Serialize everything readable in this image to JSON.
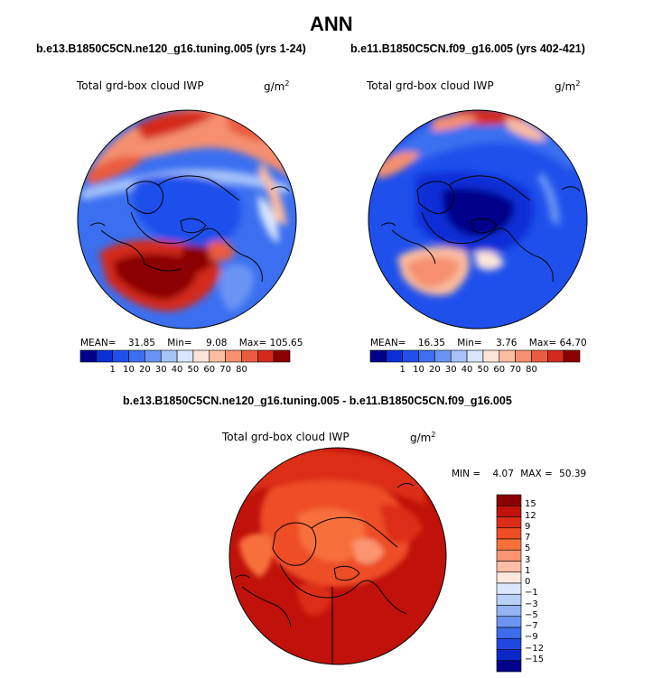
{
  "figure_title": "ANN",
  "chart_data": [
    {
      "type": "polar_contour_map",
      "title": "b.e13.B1850C5CN.ne120_g16.tuning.005 (yrs 1-24)",
      "variable": "Total grd-box cloud IWP",
      "units": "g/m",
      "units_exp": "2",
      "stats": {
        "mean_label": "MEAN=",
        "mean": "31.85",
        "min_label": "Min=",
        "min": "9.08",
        "max_label": "Max=",
        "max": "105.65"
      },
      "colorbar": {
        "levels": [
          "1",
          "10",
          "20",
          "30",
          "40",
          "50",
          "60",
          "70",
          "80"
        ],
        "colors": [
          "#00008b",
          "#0b2fd6",
          "#1f50ec",
          "#3b6ff0",
          "#6a94f4",
          "#a5c2f9",
          "#d8e6fc",
          "#fde4d8",
          "#fbbc9f",
          "#f58f6f",
          "#ea5c3f",
          "#d42a1e",
          "#8b0000"
        ]
      }
    },
    {
      "type": "polar_contour_map",
      "title": "b.e11.B1850C5CN.f09_g16.005 (yrs 402-421)",
      "variable": "Total grd-box cloud IWP",
      "units": "g/m",
      "units_exp": "2",
      "stats": {
        "mean_label": "MEAN=",
        "mean": "16.35",
        "min_label": "Min=",
        "min": "3.76",
        "max_label": "Max=",
        "max": "64.70"
      },
      "colorbar": {
        "levels": [
          "1",
          "10",
          "20",
          "30",
          "40",
          "50",
          "60",
          "70",
          "80"
        ],
        "colors": [
          "#00008b",
          "#0b2fd6",
          "#1f50ec",
          "#3b6ff0",
          "#6a94f4",
          "#a5c2f9",
          "#d8e6fc",
          "#fde4d8",
          "#fbbc9f",
          "#f58f6f",
          "#ea5c3f",
          "#d42a1e",
          "#8b0000"
        ]
      }
    },
    {
      "type": "polar_contour_map",
      "title": "b.e13.B1850C5CN.ne120_g16.tuning.005 - b.e11.B1850C5CN.f09_g16.005",
      "variable": "Total grd-box cloud IWP",
      "units": "g/m",
      "units_exp": "2",
      "stats": {
        "min_label": "MIN =",
        "min": "4.07",
        "max_label": "MAX =",
        "max": "50.39"
      },
      "colorbar": {
        "levels": [
          "15",
          "12",
          "9",
          "7",
          "5",
          "3",
          "1",
          "0",
          "-1",
          "-3",
          "-5",
          "-7",
          "-9",
          "-12",
          "-15"
        ],
        "colors": [
          "#8b0000",
          "#c0120a",
          "#dc2e16",
          "#ee4d25",
          "#f7703a",
          "#fb9470",
          "#fcbea4",
          "#fde8df",
          "#dbe8fb",
          "#b9d0f7",
          "#93b4f3",
          "#6a94f0",
          "#3d6cec",
          "#1f48e0",
          "#0a28c8",
          "#00008b"
        ]
      }
    }
  ]
}
